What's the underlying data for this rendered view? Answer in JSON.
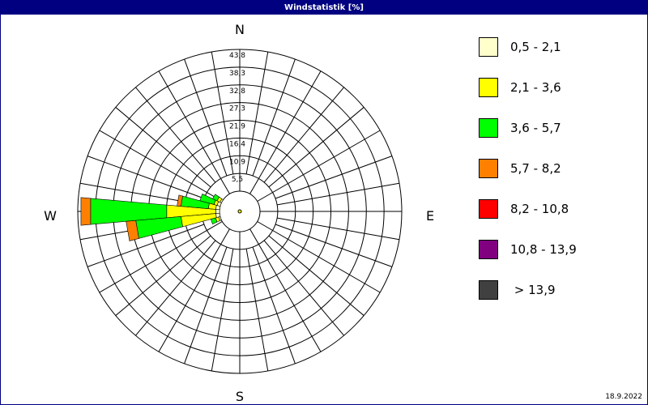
{
  "window": {
    "title": "Windstatistik [%]"
  },
  "footer": {
    "date": "18.9.2022"
  },
  "chart_data": {
    "type": "windrose",
    "title": "Windstatistik [%]",
    "direction_labels": {
      "north": "N",
      "east": "E",
      "south": "S",
      "west": "W"
    },
    "radial_ticks": [
      "5,5",
      "10,9",
      "16,4",
      "21,9",
      "27,3",
      "32,8",
      "38,3",
      "43,8"
    ],
    "radial_max": 43.8,
    "sectors": 36,
    "speed_classes": [
      {
        "label": "0,5 - 2,1",
        "color": "#ffffcc"
      },
      {
        "label": "2,1 - 3,6",
        "color": "#ffff00"
      },
      {
        "label": "3,6 - 5,7",
        "color": "#00ff00"
      },
      {
        "label": "5,7 - 8,2",
        "color": "#ff8000"
      },
      {
        "label": "8,2 - 10,8",
        "color": "#ff0000"
      },
      {
        "label": "10,8 - 13,9",
        "color": "#800080"
      },
      {
        "label": " > 13,9",
        "color": "#404040"
      }
    ],
    "bars": [
      {
        "direction_deg": 270,
        "cumulative": [
          1.2,
          16.4,
          40.0,
          43.0
        ]
      },
      {
        "direction_deg": 260,
        "cumulative": [
          1.2,
          12.0,
          26.0,
          29.0
        ]
      },
      {
        "direction_deg": 280,
        "cumulative": [
          1.2,
          3.5,
          12.0,
          13.2
        ]
      },
      {
        "direction_deg": 290,
        "cumulative": [
          1.0,
          2.0,
          6.5
        ]
      },
      {
        "direction_deg": 250,
        "cumulative": [
          0.5,
          1.5,
          3.0
        ]
      },
      {
        "direction_deg": 300,
        "cumulative": [
          0.5,
          1.5,
          3.0
        ]
      }
    ]
  }
}
